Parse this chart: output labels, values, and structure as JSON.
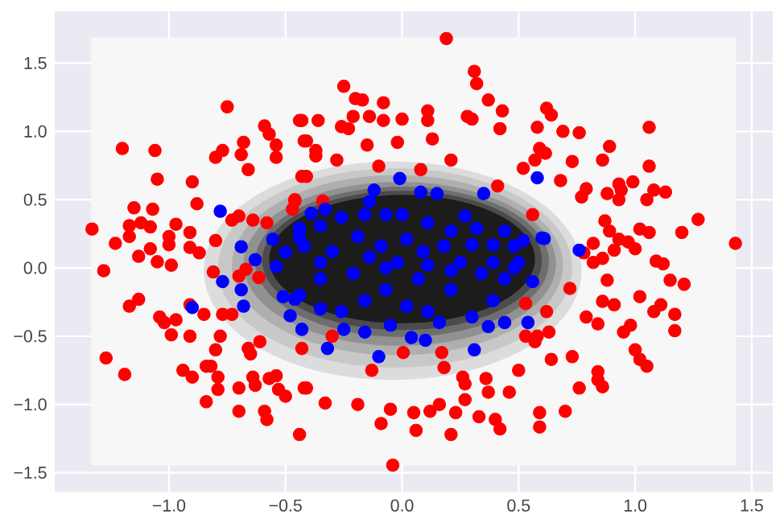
{
  "chart_data": {
    "type": "scatter",
    "xlim": [
      -1.49,
      1.59
    ],
    "ylim": [
      -1.64,
      1.88
    ],
    "xticks": [
      {
        "value": -1.0,
        "label": "−1.0"
      },
      {
        "value": -0.5,
        "label": "−0.5"
      },
      {
        "value": 0.0,
        "label": "0.0"
      },
      {
        "value": 0.5,
        "label": "0.5"
      },
      {
        "value": 1.0,
        "label": "1.0"
      },
      {
        "value": 1.5,
        "label": "1.5"
      }
    ],
    "yticks": [
      {
        "value": -1.5,
        "label": "−1.5"
      },
      {
        "value": -1.0,
        "label": "−1.0"
      },
      {
        "value": -0.5,
        "label": "−0.5"
      },
      {
        "value": 0.0,
        "label": "0.0"
      },
      {
        "value": 0.5,
        "label": "0.5"
      },
      {
        "value": 1.0,
        "label": "1.0"
      },
      {
        "value": 1.5,
        "label": "1.5"
      }
    ],
    "grid": true,
    "marker": "circle",
    "series": [
      {
        "color": "#ff0000",
        "x": [
          -0.75,
          -1.2,
          -1.06,
          -1.05,
          -0.59,
          -0.57,
          -0.68,
          -0.54,
          -0.54,
          -0.69,
          -0.8,
          -0.77,
          -0.66,
          -0.44,
          -0.9,
          -0.88,
          -1.15,
          -1.07,
          -1.33,
          -1.17,
          -1.12,
          -1.08,
          -0.97,
          -1.17,
          -1.23,
          -1.0,
          -0.91,
          -1.0,
          -1.08,
          -1.13,
          -0.91,
          -0.87,
          -1.05,
          -0.99,
          -0.8,
          -0.73,
          -0.7,
          -0.64,
          -0.58,
          -0.46,
          -0.47,
          -0.43,
          -0.42,
          -1.28,
          0.19,
          0.31,
          0.32,
          -0.25,
          -0.2,
          -0.17,
          -0.08,
          -0.43,
          -0.36,
          -0.21,
          -0.14,
          -0.08,
          0.0,
          -0.26,
          -0.23,
          0.11,
          0.11,
          0.28,
          0.3,
          0.37,
          0.43,
          0.42,
          -0.41,
          -0.37,
          -0.37,
          -0.28,
          -0.15,
          -0.02,
          0.13,
          -0.1,
          0.21,
          0.08,
          -0.41,
          0.52,
          0.57,
          0.58,
          0.59,
          0.41,
          0.56,
          -0.46,
          -0.34,
          0.62,
          0.64,
          0.69,
          0.76,
          1.06,
          0.615,
          0.73,
          0.89,
          0.86,
          1.06,
          0.68,
          0.79,
          0.77,
          0.88,
          0.93,
          0.99,
          0.94,
          0.93,
          1.08,
          1.13,
          1.05,
          0.87,
          0.89,
          0.93,
          0.97,
          1.0,
          1.02,
          1.06,
          1.2,
          1.27,
          1.43,
          0.91,
          0.82,
          0.78,
          0.82,
          0.86,
          1.09,
          1.12,
          -1.17,
          -1.13,
          -1.27,
          -1.19,
          -1.04,
          -1.02,
          -0.97,
          -0.99,
          -0.91,
          -0.91,
          -0.85,
          -0.77,
          -0.73,
          -0.78,
          -0.8,
          -0.66,
          -0.65,
          -0.61,
          -0.94,
          -0.9,
          -0.84,
          -0.82,
          -0.79,
          -0.79,
          -0.84,
          -0.7,
          -0.64,
          -0.63,
          -0.57,
          -0.54,
          -0.53,
          -0.5,
          -0.7,
          -0.59,
          -0.58,
          -0.44,
          -0.81,
          -0.7,
          -0.67,
          -0.615,
          -0.43,
          -0.42,
          -0.04,
          -0.41,
          -0.33,
          -0.19,
          -0.05,
          -0.09,
          0.05,
          0.06,
          0.12,
          0.16,
          0.21,
          0.23,
          0.27,
          0.26,
          0.27,
          0.18,
          0.36,
          0.37,
          0.33,
          0.4,
          0.42,
          0.46,
          0.5,
          0.59,
          0.59,
          -0.13,
          0.005,
          0.17,
          0.53,
          0.53,
          0.57,
          -0.3,
          0.88,
          0.72,
          0.86,
          0.91,
          1.02,
          1.15,
          1.21,
          1.08,
          1.11,
          1.17,
          1.17,
          0.79,
          0.84,
          0.95,
          0.98,
          0.62,
          0.63,
          0.58,
          0.64,
          0.73,
          1.0,
          1.02,
          1.05,
          0.84,
          0.84,
          0.86,
          0.76,
          0.7
        ],
        "values": [
          1.18,
          0.875,
          0.86,
          0.65,
          1.04,
          0.98,
          0.92,
          0.9,
          0.81,
          0.83,
          0.81,
          0.86,
          0.72,
          1.08,
          0.63,
          0.47,
          0.44,
          0.43,
          0.285,
          0.31,
          0.33,
          0.3,
          0.32,
          0.23,
          0.18,
          0.23,
          0.26,
          0.17,
          0.14,
          0.085,
          0.15,
          0.11,
          0.045,
          0.02,
          0.2,
          0.35,
          0.38,
          0.35,
          0.33,
          0.49,
          0.43,
          0.67,
          0.93,
          -0.02,
          1.68,
          1.44,
          1.35,
          1.33,
          1.24,
          1.23,
          1.21,
          1.08,
          1.08,
          1.11,
          1.11,
          1.08,
          1.09,
          1.035,
          1.02,
          1.15,
          1.08,
          1.11,
          1.09,
          1.23,
          1.15,
          1.02,
          0.93,
          0.86,
          0.82,
          0.79,
          0.9,
          0.92,
          0.945,
          0.745,
          0.79,
          0.72,
          0.67,
          0.73,
          0.79,
          1.03,
          0.875,
          0.6,
          0.39,
          0.5,
          0.49,
          1.17,
          1.12,
          1.0,
          0.99,
          1.03,
          0.84,
          0.78,
          0.89,
          0.79,
          0.745,
          0.64,
          0.58,
          0.52,
          0.545,
          0.615,
          0.63,
          0.57,
          0.5,
          0.57,
          0.555,
          0.5,
          0.345,
          0.27,
          0.21,
          0.19,
          0.14,
          0.285,
          0.26,
          0.26,
          0.355,
          0.18,
          0.13,
          0.18,
          0.11,
          0.04,
          0.07,
          0.05,
          0.03,
          -0.28,
          -0.23,
          -0.66,
          -0.78,
          -0.36,
          -0.4,
          -0.38,
          -0.49,
          -0.5,
          -0.27,
          -0.34,
          -0.34,
          -0.34,
          -0.5,
          -0.6,
          -0.59,
          -0.63,
          -0.54,
          -0.75,
          -0.8,
          -0.72,
          -0.72,
          -0.8,
          -0.89,
          -0.98,
          -0.88,
          -0.8,
          -0.86,
          -0.81,
          -0.79,
          -0.89,
          -0.94,
          -1.05,
          -1.05,
          -1.11,
          -1.22,
          -0.03,
          -0.06,
          -0.01,
          -0.07,
          -0.59,
          -0.88,
          -1.445,
          -0.88,
          -0.99,
          -1.0,
          -1.035,
          -1.14,
          -1.06,
          -1.19,
          -1.05,
          -1.0,
          -1.22,
          -1.06,
          -0.965,
          -0.8,
          -0.85,
          -0.73,
          -0.81,
          -0.91,
          -1.09,
          -1.11,
          -1.18,
          -0.91,
          -0.75,
          -1.165,
          -1.06,
          -0.75,
          -0.62,
          -0.62,
          -0.26,
          -0.5,
          -0.54,
          -0.5,
          -0.09,
          -0.15,
          -0.245,
          -0.27,
          -0.21,
          -0.09,
          -0.12,
          -0.32,
          -0.27,
          -0.34,
          -0.46,
          -0.36,
          -0.41,
          -0.47,
          -0.42,
          -0.32,
          -0.47,
          -0.5,
          -0.67,
          -0.65,
          -0.6,
          -0.67,
          -0.72,
          -0.76,
          -0.82,
          -0.87,
          -0.88,
          -1.05
        ]
      },
      {
        "color": "#0000ff",
        "x": [
          -0.78,
          -0.69,
          -0.555,
          -0.63,
          -0.5,
          -0.44,
          -0.44,
          -0.54,
          -0.01,
          0.08,
          0.15,
          0.35,
          0.58,
          -0.12,
          -0.14,
          -0.39,
          -0.33,
          0.27,
          0.52,
          0.6,
          -0.44,
          -0.35,
          -0.26,
          -0.16,
          -0.07,
          0.0,
          0.11,
          0.21,
          0.32,
          0.44,
          -0.42,
          -0.3,
          -0.19,
          -0.09,
          0.02,
          0.09,
          0.18,
          0.3,
          0.39,
          0.48,
          -0.35,
          -0.14,
          -0.02,
          0.11,
          0.25,
          0.39,
          0.5,
          0.61,
          0.76,
          -0.77,
          -0.69,
          -0.68,
          -0.9,
          -0.51,
          -0.46,
          -0.48,
          -0.43,
          -0.1,
          0.31,
          0.54,
          0.56,
          -0.32,
          -0.25,
          -0.16,
          -0.05,
          0.04,
          0.1,
          0.16,
          0.37,
          0.44,
          -0.44,
          -0.35,
          -0.26,
          -0.16,
          -0.07,
          0.02,
          0.11,
          0.21,
          0.3,
          0.39,
          0.44,
          -0.35,
          -0.21,
          -0.07,
          0.07,
          0.21,
          0.34,
          0.48
        ],
        "values": [
          0.415,
          0.155,
          0.21,
          0.06,
          0.115,
          0.29,
          0.22,
          0.01,
          0.655,
          0.555,
          0.545,
          0.545,
          0.66,
          0.57,
          0.485,
          0.4,
          0.43,
          0.38,
          0.2,
          0.22,
          0.27,
          0.31,
          0.37,
          0.39,
          0.39,
          0.39,
          0.33,
          0.27,
          0.29,
          0.27,
          0.16,
          0.12,
          0.23,
          0.16,
          0.21,
          0.12,
          0.16,
          0.17,
          0.17,
          0.16,
          0.04,
          0.08,
          0.04,
          0.02,
          0.04,
          0.04,
          0.04,
          0.215,
          0.13,
          -0.1,
          -0.16,
          -0.28,
          -0.29,
          -0.21,
          -0.23,
          -0.35,
          -0.45,
          -0.65,
          -0.6,
          -0.4,
          -0.1,
          -0.59,
          -0.45,
          -0.47,
          -0.42,
          -0.51,
          -0.53,
          -0.4,
          -0.43,
          -0.4,
          -0.2,
          -0.3,
          -0.32,
          -0.24,
          -0.16,
          -0.28,
          -0.32,
          -0.16,
          -0.36,
          -0.24,
          -0.08,
          -0.08,
          -0.04,
          0.0,
          -0.08,
          -0.02,
          -0.04,
          0.0
        ]
      }
    ]
  }
}
